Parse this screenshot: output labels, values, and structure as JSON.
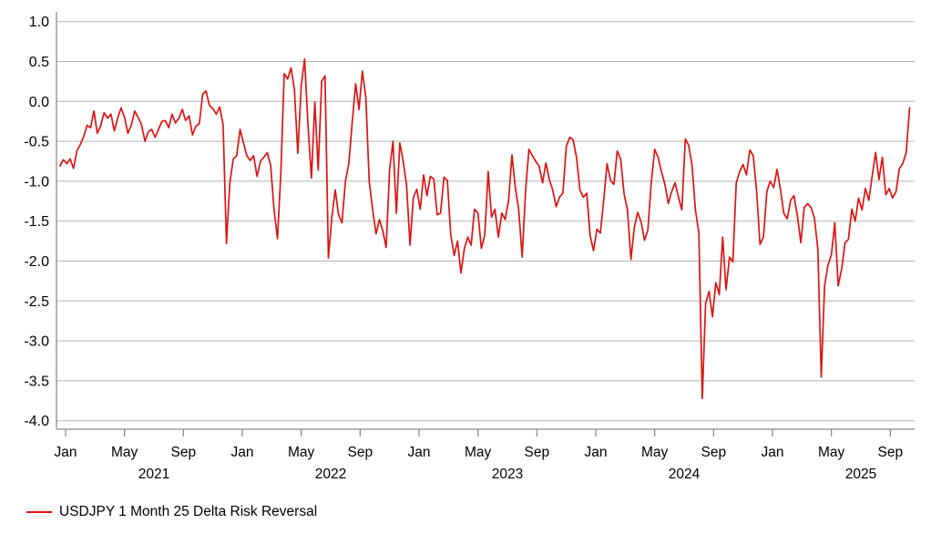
{
  "colors": {
    "line": "#dc1412",
    "grid": "#b3b3b3",
    "axis": "#8c8c8c",
    "text": "#000000",
    "background": "#ffffff"
  },
  "legend": {
    "label": "USDJPY 1 Month 25 Delta Risk Reversal"
  },
  "chart_data": {
    "type": "line",
    "grid": true,
    "legend_position": "bottom-left",
    "y_axis": {
      "min": -4.0,
      "max": 1.0,
      "tick_step": 0.5,
      "tick_labels": [
        "1.0",
        "0.5",
        "0.0",
        "-0.5",
        "-1.0",
        "-1.5",
        "-2.0",
        "-2.5",
        "-3.0",
        "-3.5",
        "-4.0"
      ]
    },
    "x_axis": {
      "ticks": [
        {
          "label": "Jan",
          "t": 0.0
        },
        {
          "label": "May",
          "t": 0.3333
        },
        {
          "label": "Sep",
          "t": 0.6667
        },
        {
          "label": "Jan",
          "t": 1.0
        },
        {
          "label": "May",
          "t": 1.3333
        },
        {
          "label": "Sep",
          "t": 1.6667
        },
        {
          "label": "Jan",
          "t": 2.0
        },
        {
          "label": "May",
          "t": 2.3333
        },
        {
          "label": "Sep",
          "t": 2.6667
        },
        {
          "label": "Jan",
          "t": 3.0
        },
        {
          "label": "May",
          "t": 3.3333
        },
        {
          "label": "Sep",
          "t": 3.6667
        },
        {
          "label": "Jan",
          "t": 4.0
        },
        {
          "label": "May",
          "t": 4.3333
        },
        {
          "label": "Sep",
          "t": 4.6667
        }
      ],
      "year_labels": [
        {
          "label": "2021",
          "t": 0.5
        },
        {
          "label": "2022",
          "t": 1.5
        },
        {
          "label": "2023",
          "t": 2.5
        },
        {
          "label": "2024",
          "t": 3.5
        },
        {
          "label": "2025",
          "t": 4.5
        }
      ]
    },
    "series": [
      {
        "name": "USDJPY 1 Month 25 Delta Risk Reversal",
        "color": "#dc1412",
        "x_start_years": -0.032,
        "x_step_years": 0.0192308,
        "values": [
          -0.81,
          -0.73,
          -0.78,
          -0.72,
          -0.84,
          -0.62,
          -0.54,
          -0.44,
          -0.3,
          -0.33,
          -0.12,
          -0.4,
          -0.3,
          -0.14,
          -0.21,
          -0.16,
          -0.37,
          -0.21,
          -0.08,
          -0.2,
          -0.4,
          -0.3,
          -0.12,
          -0.2,
          -0.29,
          -0.5,
          -0.38,
          -0.35,
          -0.45,
          -0.35,
          -0.25,
          -0.24,
          -0.33,
          -0.16,
          -0.27,
          -0.21,
          -0.1,
          -0.24,
          -0.18,
          -0.42,
          -0.31,
          -0.28,
          0.09,
          0.13,
          -0.05,
          -0.09,
          -0.16,
          -0.07,
          -0.29,
          -1.78,
          -1.02,
          -0.72,
          -0.68,
          -0.35,
          -0.52,
          -0.68,
          -0.74,
          -0.68,
          -0.94,
          -0.75,
          -0.7,
          -0.64,
          -0.8,
          -1.35,
          -1.72,
          -0.9,
          0.35,
          0.28,
          0.42,
          0.15,
          -0.65,
          0.2,
          0.53,
          -0.3,
          -0.96,
          -0.01,
          -0.86,
          0.25,
          0.32,
          -1.96,
          -1.45,
          -1.11,
          -1.42,
          -1.52,
          -1.0,
          -0.78,
          -0.27,
          0.22,
          -0.1,
          0.38,
          0.05,
          -1.0,
          -1.35,
          -1.66,
          -1.48,
          -1.62,
          -1.83,
          -0.85,
          -0.5,
          -1.4,
          -0.52,
          -0.75,
          -1.05,
          -1.8,
          -1.2,
          -1.1,
          -1.35,
          -0.92,
          -1.18,
          -0.94,
          -0.97,
          -1.42,
          -1.4,
          -0.95,
          -0.99,
          -1.67,
          -1.93,
          -1.75,
          -2.15,
          -1.84,
          -1.7,
          -1.8,
          -1.35,
          -1.4,
          -1.84,
          -1.68,
          -0.88,
          -1.45,
          -1.35,
          -1.7,
          -1.4,
          -1.48,
          -1.24,
          -0.67,
          -1.08,
          -1.36,
          -1.95,
          -1.13,
          -0.6,
          -0.68,
          -0.75,
          -0.81,
          -1.02,
          -0.77,
          -0.98,
          -1.11,
          -1.32,
          -1.2,
          -1.15,
          -0.56,
          -0.45,
          -0.48,
          -0.7,
          -1.11,
          -1.2,
          -1.15,
          -1.68,
          -1.87,
          -1.6,
          -1.65,
          -1.24,
          -0.78,
          -0.99,
          -1.04,
          -0.62,
          -0.73,
          -1.16,
          -1.36,
          -1.98,
          -1.58,
          -1.39,
          -1.51,
          -1.74,
          -1.61,
          -1.02,
          -0.6,
          -0.7,
          -0.88,
          -1.04,
          -1.28,
          -1.13,
          -1.02,
          -1.2,
          -1.36,
          -0.47,
          -0.55,
          -0.8,
          -1.36,
          -1.65,
          -3.72,
          -2.53,
          -2.38,
          -2.7,
          -2.27,
          -2.42,
          -1.7,
          -2.36,
          -1.95,
          -2.01,
          -1.02,
          -0.88,
          -0.79,
          -0.92,
          -0.61,
          -0.68,
          -1.13,
          -1.79,
          -1.7,
          -1.13,
          -1.0,
          -1.08,
          -0.85,
          -1.1,
          -1.4,
          -1.47,
          -1.24,
          -1.18,
          -1.44,
          -1.77,
          -1.33,
          -1.28,
          -1.33,
          -1.46,
          -1.85,
          -3.45,
          -2.31,
          -2.05,
          -1.92,
          -1.52,
          -2.31,
          -2.1,
          -1.77,
          -1.73,
          -1.35,
          -1.5,
          -1.21,
          -1.36,
          -1.09,
          -1.24,
          -0.94,
          -0.64,
          -0.98,
          -0.7,
          -1.17,
          -1.09,
          -1.21,
          -1.13,
          -0.84,
          -0.78,
          -0.64,
          -0.08
        ]
      }
    ]
  }
}
